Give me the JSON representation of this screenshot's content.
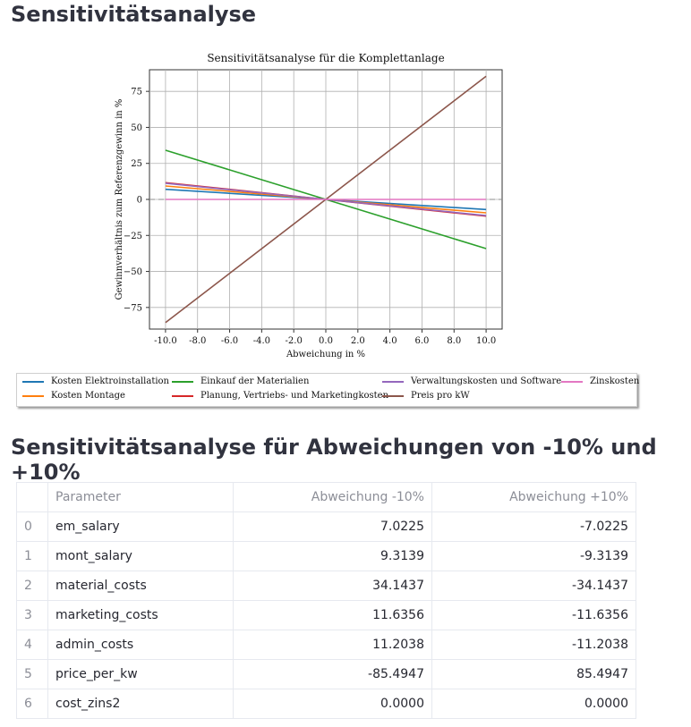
{
  "page": {
    "heading": "Sensitivitätsanalyse",
    "table_heading": "Sensitivitätsanalyse für Abweichungen von -10% und +10%"
  },
  "chart_data": {
    "type": "line",
    "title": "Sensitivitätsanalyse für die Komplettanlage",
    "xlabel": "Abweichung in %",
    "ylabel": "Gewinnverhältnis zum Referenzgewinn in %",
    "xlim": [
      -11,
      11
    ],
    "ylim": [
      -90,
      90
    ],
    "xticks": [
      "-10.0",
      "-8.0",
      "-6.0",
      "-4.0",
      "-2.0",
      "0.0",
      "2.0",
      "4.0",
      "6.0",
      "8.0",
      "10.0"
    ],
    "xtick_values": [
      -10,
      -8,
      -6,
      -4,
      -2,
      0,
      2,
      4,
      6,
      8,
      10
    ],
    "yticks": [
      "75",
      "50",
      "25",
      "0",
      "−25",
      "−50",
      "−75"
    ],
    "ytick_values": [
      75,
      50,
      25,
      0,
      -25,
      -50,
      -75
    ],
    "grid": true,
    "reference_line_y": 0,
    "legend_position": "bottom",
    "x": [
      -10,
      0,
      10
    ],
    "series": [
      {
        "name": "Kosten Elektroinstallation",
        "color": "#1f77b4",
        "values": [
          7.0225,
          0,
          -7.0225
        ]
      },
      {
        "name": "Kosten Montage",
        "color": "#ff7f0e",
        "values": [
          9.3139,
          0,
          -9.3139
        ]
      },
      {
        "name": "Einkauf der Materialien",
        "color": "#2ca02c",
        "values": [
          34.1437,
          0,
          -34.1437
        ]
      },
      {
        "name": "Planung, Vertriebs- und Marketingkosten",
        "color": "#d62728",
        "values": [
          11.6356,
          0,
          -11.6356
        ]
      },
      {
        "name": "Verwaltungskosten und Software",
        "color": "#9467bd",
        "values": [
          11.2038,
          0,
          -11.2038
        ]
      },
      {
        "name": "Preis pro kW",
        "color": "#8c564b",
        "values": [
          -85.4947,
          0,
          85.4947
        ]
      },
      {
        "name": "Zinskosten",
        "color": "#e377c2",
        "values": [
          0.0,
          0,
          0.0
        ]
      }
    ]
  },
  "table": {
    "columns": [
      "",
      "Parameter",
      "Abweichung -10%",
      "Abweichung +10%"
    ],
    "rows": [
      [
        "0",
        "em_salary",
        "7.0225",
        "-7.0225"
      ],
      [
        "1",
        "mont_salary",
        "9.3139",
        "-9.3139"
      ],
      [
        "2",
        "material_costs",
        "34.1437",
        "-34.1437"
      ],
      [
        "3",
        "marketing_costs",
        "11.6356",
        "-11.6356"
      ],
      [
        "4",
        "admin_costs",
        "11.2038",
        "-11.2038"
      ],
      [
        "5",
        "price_per_kw",
        "-85.4947",
        "85.4947"
      ],
      [
        "6",
        "cost_zins2",
        "0.0000",
        "0.0000"
      ]
    ]
  }
}
